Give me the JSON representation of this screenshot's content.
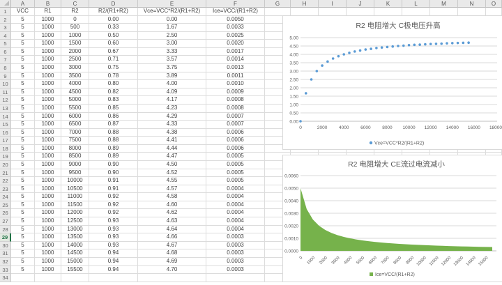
{
  "colors": {
    "accent_blue": "#5B9BD5",
    "accent_green": "#76B24B",
    "chart_grid": "#D9D9D9",
    "chart_axis": "#BFBFBF",
    "chart_text": "#595959",
    "header_bg": "#E9E9E9",
    "gridline": "#DCDCDC",
    "active_row_green": "#217346"
  },
  "sheet": {
    "column_letters": [
      "A",
      "B",
      "C",
      "D",
      "E",
      "F",
      "G",
      "H",
      "I",
      "J",
      "K",
      "L",
      "M",
      "N",
      "O"
    ],
    "visible_row_count": 34,
    "active_row": 29,
    "header_row": [
      "VCC",
      "R1",
      "R2",
      "R2/(R1+R2)",
      "Vce=VCC*R2/(R1+R2)",
      "Ice=VCC/(R1+R2)"
    ],
    "rows": [
      [
        "5",
        "1000",
        "0",
        "0.00",
        "0.00",
        "0.0050"
      ],
      [
        "5",
        "1000",
        "500",
        "0.33",
        "1.67",
        "0.0033"
      ],
      [
        "5",
        "1000",
        "1000",
        "0.50",
        "2.50",
        "0.0025"
      ],
      [
        "5",
        "1000",
        "1500",
        "0.60",
        "3.00",
        "0.0020"
      ],
      [
        "5",
        "1000",
        "2000",
        "0.67",
        "3.33",
        "0.0017"
      ],
      [
        "5",
        "1000",
        "2500",
        "0.71",
        "3.57",
        "0.0014"
      ],
      [
        "5",
        "1000",
        "3000",
        "0.75",
        "3.75",
        "0.0013"
      ],
      [
        "5",
        "1000",
        "3500",
        "0.78",
        "3.89",
        "0.0011"
      ],
      [
        "5",
        "1000",
        "4000",
        "0.80",
        "4.00",
        "0.0010"
      ],
      [
        "5",
        "1000",
        "4500",
        "0.82",
        "4.09",
        "0.0009"
      ],
      [
        "5",
        "1000",
        "5000",
        "0.83",
        "4.17",
        "0.0008"
      ],
      [
        "5",
        "1000",
        "5500",
        "0.85",
        "4.23",
        "0.0008"
      ],
      [
        "5",
        "1000",
        "6000",
        "0.86",
        "4.29",
        "0.0007"
      ],
      [
        "5",
        "1000",
        "6500",
        "0.87",
        "4.33",
        "0.0007"
      ],
      [
        "5",
        "1000",
        "7000",
        "0.88",
        "4.38",
        "0.0006"
      ],
      [
        "5",
        "1000",
        "7500",
        "0.88",
        "4.41",
        "0.0006"
      ],
      [
        "5",
        "1000",
        "8000",
        "0.89",
        "4.44",
        "0.0006"
      ],
      [
        "5",
        "1000",
        "8500",
        "0.89",
        "4.47",
        "0.0005"
      ],
      [
        "5",
        "1000",
        "9000",
        "0.90",
        "4.50",
        "0.0005"
      ],
      [
        "5",
        "1000",
        "9500",
        "0.90",
        "4.52",
        "0.0005"
      ],
      [
        "5",
        "1000",
        "10000",
        "0.91",
        "4.55",
        "0.0005"
      ],
      [
        "5",
        "1000",
        "10500",
        "0.91",
        "4.57",
        "0.0004"
      ],
      [
        "5",
        "1000",
        "11000",
        "0.92",
        "4.58",
        "0.0004"
      ],
      [
        "5",
        "1000",
        "11500",
        "0.92",
        "4.60",
        "0.0004"
      ],
      [
        "5",
        "1000",
        "12000",
        "0.92",
        "4.62",
        "0.0004"
      ],
      [
        "5",
        "1000",
        "12500",
        "0.93",
        "4.63",
        "0.0004"
      ],
      [
        "5",
        "1000",
        "13000",
        "0.93",
        "4.64",
        "0.0004"
      ],
      [
        "5",
        "1000",
        "13500",
        "0.93",
        "4.66",
        "0.0003"
      ],
      [
        "5",
        "1000",
        "14000",
        "0.93",
        "4.67",
        "0.0003"
      ],
      [
        "5",
        "1000",
        "14500",
        "0.94",
        "4.68",
        "0.0003"
      ],
      [
        "5",
        "1000",
        "15000",
        "0.94",
        "4.69",
        "0.0003"
      ],
      [
        "5",
        "1000",
        "15500",
        "0.94",
        "4.70",
        "0.0003"
      ]
    ]
  },
  "chart_data": [
    {
      "type": "scatter",
      "title": "R2 电阻增大 C极电压升高",
      "xlabel": "",
      "ylabel": "",
      "xlim": [
        0,
        18000
      ],
      "ylim": [
        0,
        5
      ],
      "x_ticks": [
        0,
        2000,
        4000,
        6000,
        8000,
        10000,
        12000,
        14000,
        16000,
        18000
      ],
      "y_ticks": [
        0.0,
        0.5,
        1.0,
        1.5,
        2.0,
        2.5,
        3.0,
        3.5,
        4.0,
        4.5,
        5.0
      ],
      "y_tick_decimals": 2,
      "grid": "horizontal",
      "legend_position": "bottom",
      "series": [
        {
          "name": "Vce=VCC*R2/(R1+R2)",
          "color": "#5B9BD5",
          "x": [
            0,
            500,
            1000,
            1500,
            2000,
            2500,
            3000,
            3500,
            4000,
            4500,
            5000,
            5500,
            6000,
            6500,
            7000,
            7500,
            8000,
            8500,
            9000,
            9500,
            10000,
            10500,
            11000,
            11500,
            12000,
            12500,
            13000,
            13500,
            14000,
            14500,
            15000,
            15500
          ],
          "y": [
            0.0,
            1.67,
            2.5,
            3.0,
            3.33,
            3.57,
            3.75,
            3.89,
            4.0,
            4.09,
            4.17,
            4.23,
            4.29,
            4.33,
            4.38,
            4.41,
            4.44,
            4.47,
            4.5,
            4.52,
            4.55,
            4.57,
            4.58,
            4.6,
            4.62,
            4.63,
            4.64,
            4.66,
            4.67,
            4.68,
            4.69,
            4.7
          ]
        }
      ]
    },
    {
      "type": "area",
      "title": "R2 电阻增大 CE流过电流减小",
      "xlabel": "",
      "ylabel": "",
      "ylim": [
        0,
        0.006
      ],
      "y_ticks": [
        0.0,
        0.001,
        0.002,
        0.003,
        0.004,
        0.005,
        0.006
      ],
      "y_tick_decimals": 4,
      "x_label_interval": 2,
      "grid": "horizontal",
      "legend_position": "bottom",
      "categories": [
        0,
        500,
        1000,
        1500,
        2000,
        2500,
        3000,
        3500,
        4000,
        4500,
        5000,
        5500,
        6000,
        6500,
        7000,
        7500,
        8000,
        8500,
        9000,
        9500,
        10000,
        10500,
        11000,
        11500,
        12000,
        12500,
        13000,
        13500,
        14000,
        14500,
        15000,
        15500
      ],
      "series": [
        {
          "name": "Ice=VCC/(R1+R2)",
          "color": "#76B24B",
          "values": [
            0.005,
            0.003333,
            0.0025,
            0.002,
            0.001667,
            0.001429,
            0.00125,
            0.001111,
            0.001,
            0.000909,
            0.000833,
            0.000769,
            0.000714,
            0.000667,
            0.000625,
            0.000588,
            0.000556,
            0.000526,
            0.0005,
            0.000476,
            0.000455,
            0.000435,
            0.000417,
            0.0004,
            0.000385,
            0.00037,
            0.000357,
            0.000345,
            0.000333,
            0.000323,
            0.000313,
            0.000303
          ]
        }
      ]
    }
  ]
}
